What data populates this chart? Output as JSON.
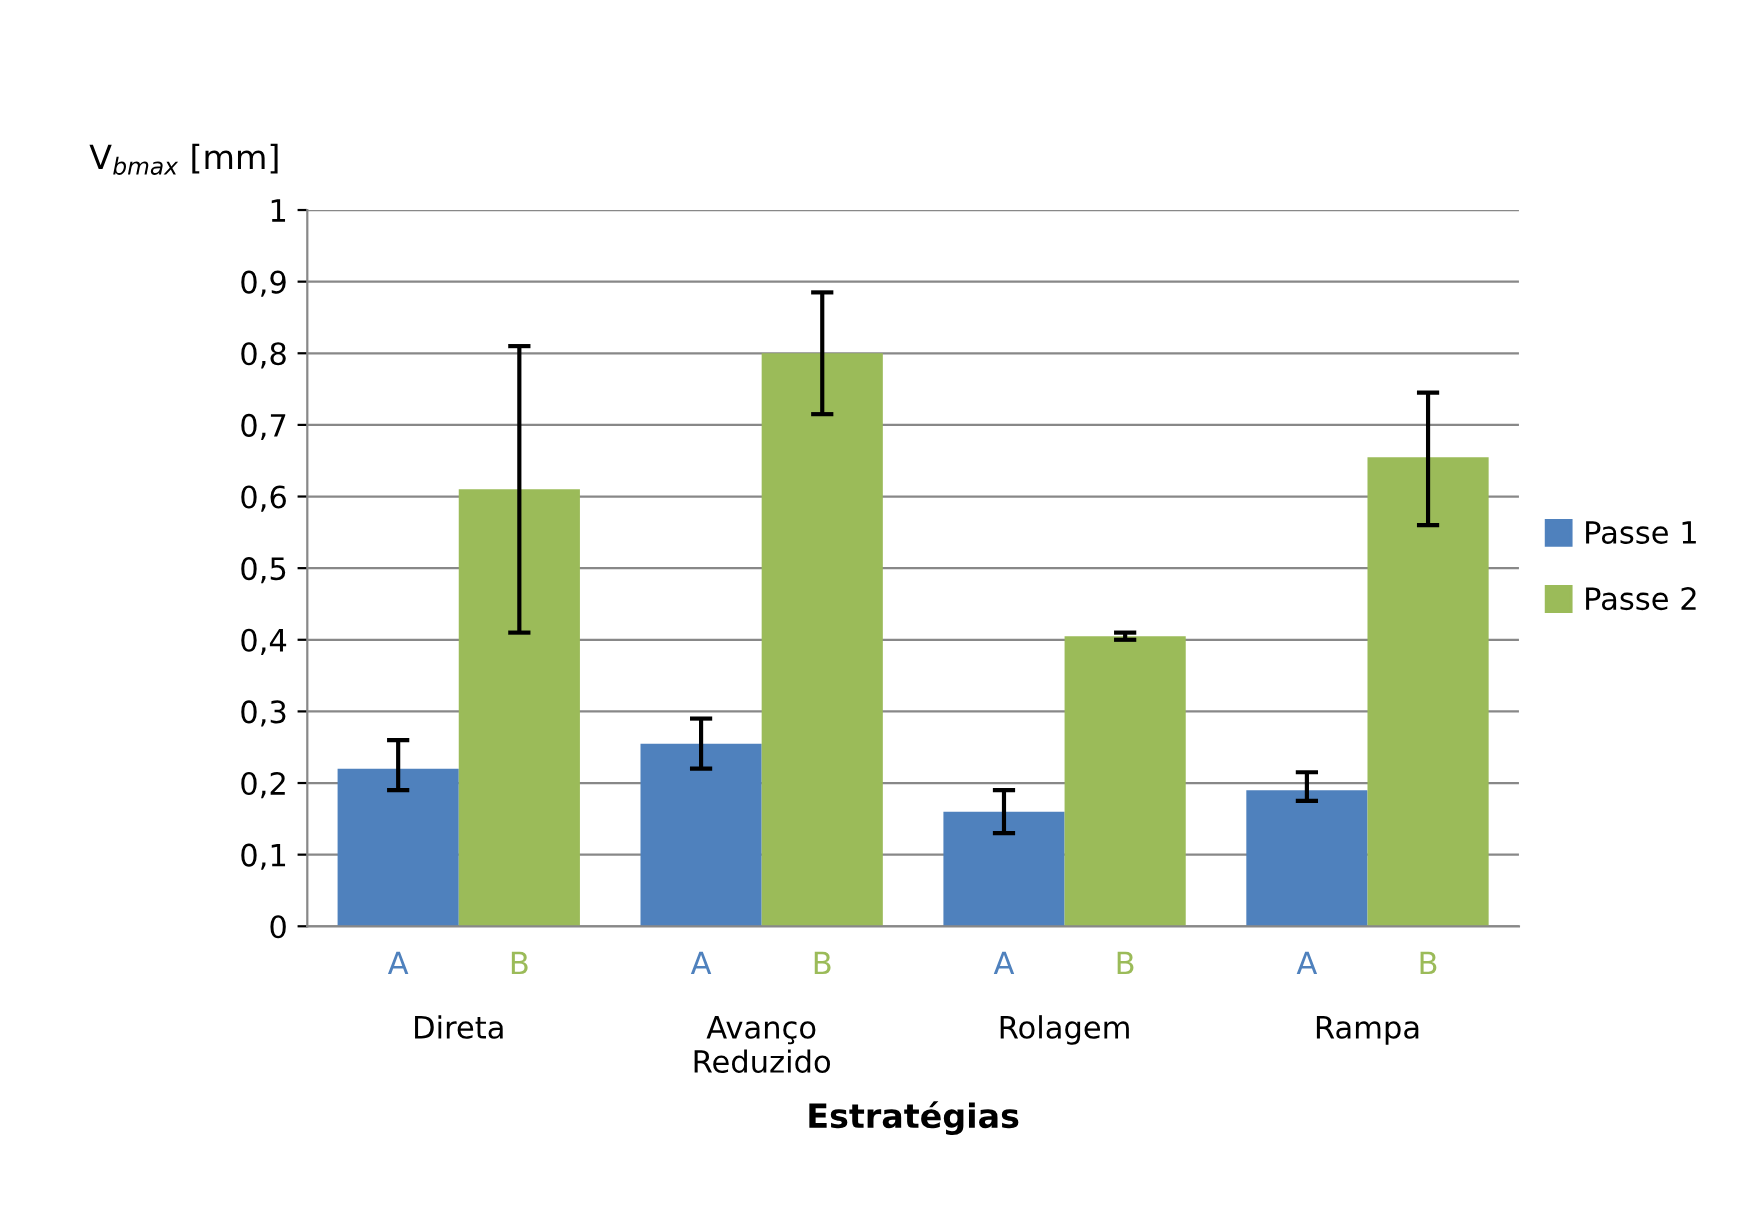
{
  "chart_data": {
    "type": "bar",
    "xlabel": "Estratégias",
    "ylabel": "V$_{bmax}$ [mm]",
    "categories": [
      "Direta",
      "Avanço\nReduzido",
      "Rolagem",
      "Rampa"
    ],
    "series": [
      {
        "name": "Passe 1",
        "color": "#4f81bd",
        "values": [
          0.22,
          0.255,
          0.16,
          0.19
        ],
        "errors": [
          [
            0.19,
            0.26
          ],
          [
            0.22,
            0.29
          ],
          [
            0.13,
            0.19
          ],
          [
            0.175,
            0.215
          ]
        ],
        "value_labels": [
          "A",
          "A",
          "A",
          "A"
        ]
      },
      {
        "name": "Passe 2",
        "color": "#9bbb59",
        "values": [
          0.61,
          0.8,
          0.405,
          0.655
        ],
        "errors": [
          [
            0.41,
            0.81
          ],
          [
            0.715,
            0.885
          ],
          [
            0.4,
            0.41
          ],
          [
            0.56,
            0.745
          ]
        ],
        "value_labels": [
          "B",
          "B",
          "B",
          "B"
        ]
      }
    ],
    "ylim": [
      0,
      1
    ],
    "yticks": [
      0,
      {
        "value": 0.1,
        "label": "0,1"
      },
      {
        "value": 0.2,
        "label": "0,2"
      },
      {
        "value": 0.3,
        "label": "0,3"
      },
      {
        "value": 0.4,
        "label": "0,4"
      },
      {
        "value": 0.5,
        "label": "0,5"
      },
      {
        "value": 0.6,
        "label": "0,6"
      },
      {
        "value": 0.7,
        "label": "0,7"
      },
      {
        "value": 0.8,
        "label": "0,8"
      },
      {
        "value": 0.9,
        "label": "0,9"
      },
      1
    ],
    "grid": "y",
    "legend": "right"
  }
}
